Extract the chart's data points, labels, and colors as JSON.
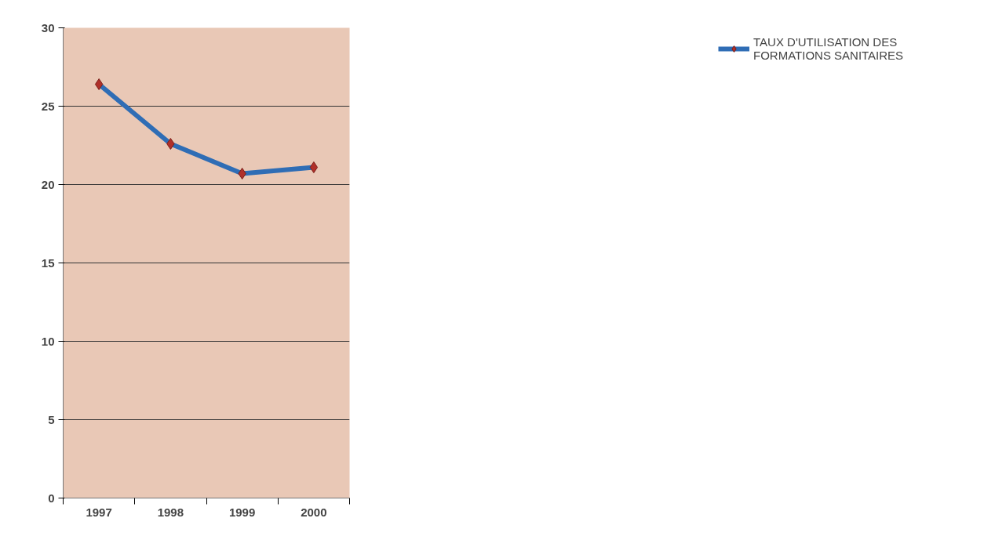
{
  "chart_data": {
    "type": "line",
    "categories": [
      "1997",
      "1998",
      "1999",
      "2000"
    ],
    "series": [
      {
        "name": "TAUX D'UTILISATION DES FORMATIONS SANITAIRES",
        "color": "#2f6db5",
        "values": [
          26.4,
          22.6,
          20.7,
          21.1
        ]
      }
    ],
    "ylim": [
      0,
      30
    ],
    "yticks": [
      0,
      5,
      10,
      15,
      20,
      25,
      30
    ],
    "grid": "y",
    "legend": "right",
    "marker": "diamond",
    "line_style": "solid"
  }
}
